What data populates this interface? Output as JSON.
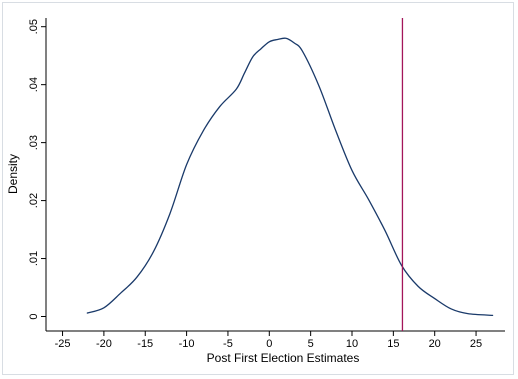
{
  "chart_data": {
    "type": "line",
    "title": "",
    "xlabel": "Post First Election Estimates",
    "ylabel": "Density",
    "xlim": [
      -27,
      28.5
    ],
    "ylim": [
      -0.0025,
      0.0515
    ],
    "xticks": [
      -25,
      -20,
      -15,
      -10,
      -5,
      0,
      5,
      10,
      15,
      20,
      25
    ],
    "yticks": [
      0,
      0.01,
      0.02,
      0.03,
      0.04,
      0.05
    ],
    "xtick_labels": [
      "-25",
      "-20",
      "-15",
      "-10",
      "-5",
      "0",
      "5",
      "10",
      "15",
      "20",
      "25"
    ],
    "ytick_labels": [
      "0",
      ".01",
      ".02",
      ".03",
      ".04",
      ".05"
    ],
    "grid": false,
    "series": [
      {
        "x": [
          -22,
          -20,
          -18,
          -16,
          -14,
          -12,
          -10,
          -8,
          -6,
          -4,
          -3,
          -2,
          -1,
          0,
          1,
          2,
          3,
          4,
          6,
          8,
          10,
          12,
          14,
          16,
          18,
          20,
          22,
          24,
          27
        ],
        "y": [
          0.0006,
          0.0015,
          0.004,
          0.0068,
          0.0112,
          0.0178,
          0.0262,
          0.032,
          0.0362,
          0.0392,
          0.042,
          0.0448,
          0.0462,
          0.0474,
          0.0478,
          0.048,
          0.0472,
          0.0458,
          0.0398,
          0.0322,
          0.0252,
          0.0202,
          0.0148,
          0.0088,
          0.0052,
          0.0031,
          0.0013,
          0.0005,
          0.0002
        ],
        "color": "#1a3a6a"
      }
    ],
    "reference_line": {
      "x": 16.1,
      "color": "#a3155a"
    }
  }
}
